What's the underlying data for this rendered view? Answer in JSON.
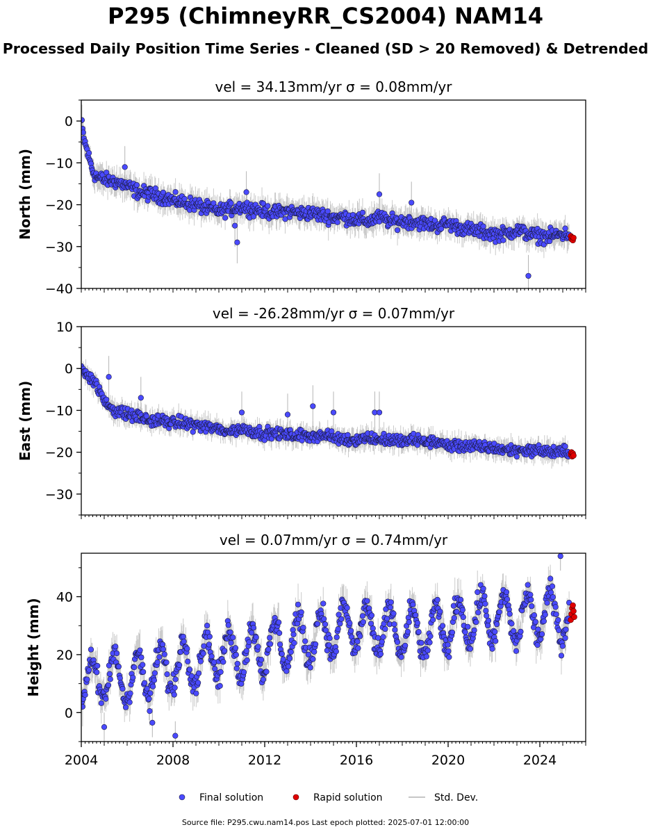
{
  "header": {
    "title": "P295 (ChimneyRR_CS2004) NAM14",
    "subtitle": "Processed Daily Position Time Series - Cleaned (SD > 20 Removed) & Detrended"
  },
  "footer": {
    "source": "Source file: P295.cwu.nam14.pos  Last epoch plotted: 2025-07-01 12:00:00"
  },
  "colors": {
    "final": "#4a4aff",
    "final_edge": "#1a1a3a",
    "rapid": "#e00000",
    "rapid_edge": "#550000",
    "stddev": "#b4b4b4"
  },
  "chart_data": [
    {
      "type": "scatter",
      "title": "vel = 34.13mm/yr   σ = 0.08mm/yr",
      "ylabel": "North (mm)",
      "xlim": [
        2004.0,
        2026.0
      ],
      "ylim": [
        -40,
        5
      ],
      "yticks": [
        0,
        -10,
        -20,
        -30,
        -40
      ],
      "ytick_labels": [
        "0",
        "−10",
        "−20",
        "−30",
        "−40"
      ],
      "xticks": [],
      "xtick_labels": [],
      "series": [
        {
          "name": "Final solution",
          "x": [
            2004.0,
            2004.1,
            2004.2,
            2004.3,
            2004.4,
            2004.5,
            2004.7,
            2005.0,
            2005.5,
            2006.0,
            2006.5,
            2007.0,
            2007.5,
            2008.0,
            2008.5,
            2009.0,
            2009.5,
            2010.0,
            2010.5,
            2011.0,
            2011.5,
            2012.0,
            2012.5,
            2013.0,
            2013.5,
            2014.0,
            2014.5,
            2015.0,
            2015.5,
            2016.0,
            2016.5,
            2017.0,
            2017.5,
            2018.0,
            2018.5,
            2019.0,
            2019.5,
            2020.0,
            2020.5,
            2021.0,
            2021.5,
            2022.0,
            2022.5,
            2023.0,
            2023.5,
            2024.0,
            2024.5,
            2025.0
          ],
          "y": [
            0,
            -4,
            -6,
            -8,
            -10,
            -12,
            -13.5,
            -14,
            -14.5,
            -15.5,
            -17,
            -17.5,
            -18,
            -19,
            -19.5,
            -20,
            -21,
            -21.5,
            -21,
            -20.5,
            -21,
            -21.5,
            -22,
            -21.5,
            -22,
            -22,
            -22.5,
            -23,
            -23,
            -23.5,
            -24,
            -23,
            -24,
            -24,
            -24,
            -24.5,
            -25,
            -24.5,
            -25.5,
            -26,
            -26.5,
            -27,
            -27,
            -26,
            -27,
            -27.5,
            -27.5,
            -27
          ],
          "outliers_x": [
            2005.9,
            2010.7,
            2010.8,
            2011.2,
            2017.0,
            2018.4,
            2023.5
          ],
          "outliers_y": [
            -11,
            -25,
            -29,
            -17,
            -17.5,
            -19.5,
            -37
          ]
        },
        {
          "name": "Rapid solution",
          "x": [
            2025.35,
            2025.38,
            2025.41,
            2025.44,
            2025.47
          ],
          "y": [
            -27.5,
            -28.2,
            -27.8,
            -28.5,
            -27.9
          ]
        }
      ],
      "noise_amplitude": 1.2,
      "stddev_amplitude": 2.5
    },
    {
      "type": "scatter",
      "title": "vel = -26.28mm/yr   σ = 0.07mm/yr",
      "ylabel": "East (mm)",
      "xlim": [
        2004.0,
        2026.0
      ],
      "ylim": [
        -35,
        10
      ],
      "yticks": [
        10,
        0,
        -10,
        -20,
        -30
      ],
      "ytick_labels": [
        "10",
        "0",
        "−10",
        "−20",
        "−30"
      ],
      "xticks": [],
      "xtick_labels": [],
      "series": [
        {
          "name": "Final solution",
          "x": [
            2004.0,
            2004.2,
            2004.4,
            2004.6,
            2004.8,
            2005.0,
            2005.5,
            2006.0,
            2006.5,
            2007.0,
            2007.5,
            2008.0,
            2008.5,
            2009.0,
            2009.5,
            2010.0,
            2010.5,
            2011.0,
            2011.5,
            2012.0,
            2012.5,
            2013.0,
            2013.5,
            2014.0,
            2014.5,
            2015.0,
            2015.5,
            2016.0,
            2016.5,
            2017.0,
            2017.5,
            2018.0,
            2018.5,
            2019.0,
            2019.5,
            2020.0,
            2020.5,
            2021.0,
            2021.5,
            2022.0,
            2022.5,
            2023.0,
            2023.5,
            2024.0,
            2024.5,
            2025.0
          ],
          "y": [
            0,
            -1,
            -2,
            -3.5,
            -5.5,
            -8,
            -10,
            -11,
            -11.5,
            -12.5,
            -12.5,
            -13,
            -13,
            -13.5,
            -14,
            -14.5,
            -15,
            -14.5,
            -15,
            -15.5,
            -15.5,
            -16,
            -16,
            -16,
            -16,
            -16.5,
            -17,
            -17,
            -16.5,
            -17,
            -17,
            -17.5,
            -17,
            -17.5,
            -17.5,
            -18.5,
            -18.5,
            -18.5,
            -19,
            -19,
            -19.5,
            -19.5,
            -19.5,
            -19.5,
            -20,
            -20
          ],
          "outliers_x": [
            2005.2,
            2006.6,
            2011.0,
            2013.0,
            2014.1,
            2015.0,
            2016.8,
            2017.0
          ],
          "outliers_y": [
            -2,
            -7,
            -10.5,
            -11,
            -9,
            -10.5,
            -10.5,
            -10.5
          ]
        },
        {
          "name": "Rapid solution",
          "x": [
            2025.35,
            2025.38,
            2025.41,
            2025.44,
            2025.47
          ],
          "y": [
            -20.5,
            -20,
            -21,
            -20.3,
            -20.8
          ]
        }
      ],
      "noise_amplitude": 1.0,
      "stddev_amplitude": 2.0
    },
    {
      "type": "scatter",
      "title": "vel = 0.07mm/yr   σ = 0.74mm/yr",
      "ylabel": "Height (mm)",
      "xlim": [
        2004.0,
        2026.0
      ],
      "ylim": [
        -10,
        55
      ],
      "yticks": [
        40,
        20,
        0
      ],
      "ytick_labels": [
        "40",
        "20",
        "0"
      ],
      "xticks": [
        2004,
        2008,
        2012,
        2016,
        2020,
        2024
      ],
      "xtick_labels": [
        "2004",
        "2008",
        "2012",
        "2016",
        "2020",
        "2024"
      ],
      "series": [
        {
          "name": "Final solution",
          "x": [
            2004.0,
            2005.0,
            2006.0,
            2007.0,
            2008.0,
            2009.0,
            2010.0,
            2011.0,
            2012.0,
            2013.0,
            2014.0,
            2015.0,
            2016.0,
            2017.0,
            2018.0,
            2019.0,
            2020.0,
            2021.0,
            2022.0,
            2023.0,
            2024.0,
            2025.0
          ],
          "y": [
            10,
            12,
            12,
            13,
            16,
            18,
            20,
            21,
            22,
            24,
            26,
            28,
            30,
            28,
            28,
            27,
            30,
            32,
            33,
            32,
            34,
            33
          ],
          "seasonal_amplitude": 8,
          "outliers_x": [
            2005.0,
            2007.1,
            2008.1,
            2024.9
          ],
          "outliers_y": [
            -5,
            -3.5,
            -8,
            54
          ]
        },
        {
          "name": "Rapid solution",
          "x": [
            2025.35,
            2025.38,
            2025.41,
            2025.44,
            2025.47,
            2025.5
          ],
          "y": [
            32,
            34,
            36,
            37,
            35,
            33
          ]
        }
      ],
      "noise_amplitude": 3.0,
      "stddev_amplitude": 5.0
    }
  ],
  "legend": {
    "items": [
      {
        "label": "Final solution",
        "kind": "dot-final"
      },
      {
        "label": "Rapid solution",
        "kind": "dot-rapid"
      },
      {
        "label": "Std. Dev.",
        "kind": "line"
      }
    ]
  }
}
